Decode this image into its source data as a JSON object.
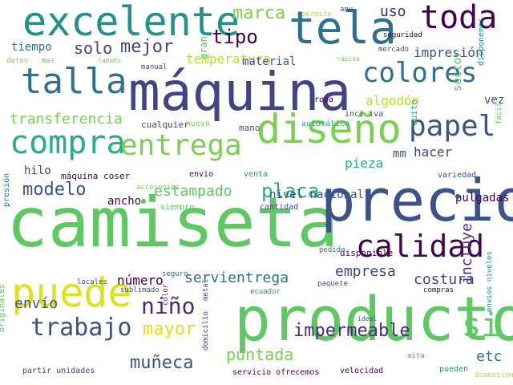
{
  "words": [
    {
      "text": "camiseta",
      "color": "#5ec962"
    },
    {
      "text": "producto",
      "color": "#5ec962"
    },
    {
      "text": "precio",
      "color": "#3b528b"
    },
    {
      "text": "máquina",
      "color": "#414487"
    },
    {
      "text": "tela",
      "color": "#2c728e"
    },
    {
      "text": "excelente",
      "color": "#21918c"
    },
    {
      "text": "diseño",
      "color": "#7ad151"
    },
    {
      "text": "puede",
      "color": "#dde318"
    },
    {
      "text": "talla",
      "color": "#2c728e"
    },
    {
      "text": "compra",
      "color": "#28ae80"
    },
    {
      "text": "entrega",
      "color": "#7ad151"
    },
    {
      "text": "toda",
      "color": "#440154"
    },
    {
      "text": "calidad",
      "color": "#440154"
    },
    {
      "text": "papel",
      "color": "#3b528b"
    },
    {
      "text": "colores",
      "color": "#2c728e"
    },
    {
      "text": "trabajo",
      "color": "#3b528b"
    },
    {
      "text": "niño",
      "color": "#472d7b"
    },
    {
      "text": "si",
      "color": "#5ec962"
    },
    {
      "text": "modelo",
      "color": "#3b528b"
    },
    {
      "text": "placa",
      "color": "#28ae80"
    },
    {
      "text": "incluye",
      "color": "#472d7b"
    },
    {
      "text": "tipo",
      "color": "#440154"
    },
    {
      "text": "mejor",
      "color": "#414487"
    },
    {
      "text": "marca",
      "color": "#7ad151"
    },
    {
      "text": "solo",
      "color": "#414487"
    },
    {
      "text": "mayor",
      "color": "#dde318"
    },
    {
      "text": "muñeca",
      "color": "#3b528b"
    },
    {
      "text": "impermeable",
      "color": "#472d7b"
    },
    {
      "text": "puntada",
      "color": "#7ad151"
    },
    {
      "text": "servientrega",
      "color": "#2c728e"
    },
    {
      "text": "estampado",
      "color": "#5ec962"
    },
    {
      "text": "envío",
      "color": "#3b528b"
    },
    {
      "text": "costura",
      "color": "#414487"
    },
    {
      "text": "etc",
      "color": "#2c728e"
    },
    {
      "text": "transferencia",
      "color": "#7ad151"
    },
    {
      "text": "uso",
      "color": "#472d7b"
    },
    {
      "text": "empresa",
      "color": "#414487"
    },
    {
      "text": "número",
      "color": "#440154"
    },
    {
      "text": "hacer",
      "color": "#414487"
    },
    {
      "text": "pieza",
      "color": "#28ae80"
    },
    {
      "text": "algodón",
      "color": "#bddf26"
    },
    {
      "text": "impresión",
      "color": "#3b528b"
    },
    {
      "text": "temperatura",
      "color": "#bddf26"
    },
    {
      "text": "material",
      "color": "#3b528b"
    },
    {
      "text": "nivel nacional",
      "color": "#3b528b"
    },
    {
      "text": "ancho",
      "color": "#440154"
    },
    {
      "text": "hilo",
      "color": "#414487"
    },
    {
      "text": "tiempo",
      "color": "#2c728e"
    },
    {
      "text": "gran",
      "color": "#5ec962"
    },
    {
      "text": "pulgadas",
      "color": "#440154"
    },
    {
      "text": "sector",
      "color": "#5ec962"
    },
    {
      "text": "vez",
      "color": "#3b528b"
    },
    {
      "text": "máquina coser",
      "color": "#440154"
    },
    {
      "text": "mm",
      "color": "#3b528b"
    },
    {
      "text": "quito",
      "color": "#28ae80"
    },
    {
      "text": "disponible",
      "color": "#440154"
    },
    {
      "text": "cualquier",
      "color": "#414487"
    },
    {
      "text": "nuevo",
      "color": "#7ad151"
    },
    {
      "text": "mano",
      "color": "#3b528b"
    },
    {
      "text": "automático",
      "color": "#28ae80"
    },
    {
      "text": "inci iva",
      "color": "#3b528b"
    },
    {
      "text": "ropa",
      "color": "#440154"
    },
    {
      "text": "cantidad",
      "color": "#414487"
    },
    {
      "text": "siempre",
      "color": "#5ec962"
    },
    {
      "text": "envio",
      "color": "#440154"
    },
    {
      "text": "venta",
      "color": "#21918c"
    },
    {
      "text": "accesorios",
      "color": "#7ad151"
    },
    {
      "text": "variedad",
      "color": "#3b528b"
    },
    {
      "text": "presión",
      "color": "#2c728e"
    },
    {
      "text": "color",
      "color": "#472d7b"
    },
    {
      "text": "metal",
      "color": "#3b528b"
    },
    {
      "text": "seguro",
      "color": "#2c728e"
    },
    {
      "text": "locales",
      "color": "#414487"
    },
    {
      "text": "sublimado",
      "color": "#3b528b"
    },
    {
      "text": "ecuador",
      "color": "#21918c"
    },
    {
      "text": "domicilio",
      "color": "#414487"
    },
    {
      "text": "pedido",
      "color": "#2c728e"
    },
    {
      "text": "paquete",
      "color": "#3b528b"
    },
    {
      "text": "originales",
      "color": "#5ec962"
    },
    {
      "text": "partir unidades",
      "color": "#414487"
    },
    {
      "text": "servicio ofrecemos",
      "color": "#440154"
    },
    {
      "text": "velocidad",
      "color": "#440154"
    },
    {
      "text": "pueden",
      "color": "#21918c"
    },
    {
      "text": "aita",
      "color": "#28ae80"
    },
    {
      "text": "ideal",
      "color": "#3b528b"
    },
    {
      "text": "compras",
      "color": "#440154"
    },
    {
      "text": "envíos niveles",
      "color": "#21918c"
    },
    {
      "text": "dimensión",
      "color": "#bddf26"
    },
    {
      "text": "permite",
      "color": "#bddf26"
    },
    {
      "text": "anu",
      "color": "#3b528b"
    },
    {
      "text": "seguridad",
      "color": "#440154"
    },
    {
      "text": "mercado",
      "color": "#3b528b"
    },
    {
      "text": "rápida",
      "color": "#7ad151"
    },
    {
      "text": "disponemos",
      "color": "#21918c"
    },
    {
      "text": "fácil",
      "color": "#5ec962"
    },
    {
      "text": "datos",
      "color": "#7ad151"
    },
    {
      "text": "mas",
      "color": "#5ec962"
    },
    {
      "text": "tamaño",
      "color": "#7ad151"
    },
    {
      "text": "manual",
      "color": "#3b528b"
    }
  ]
}
